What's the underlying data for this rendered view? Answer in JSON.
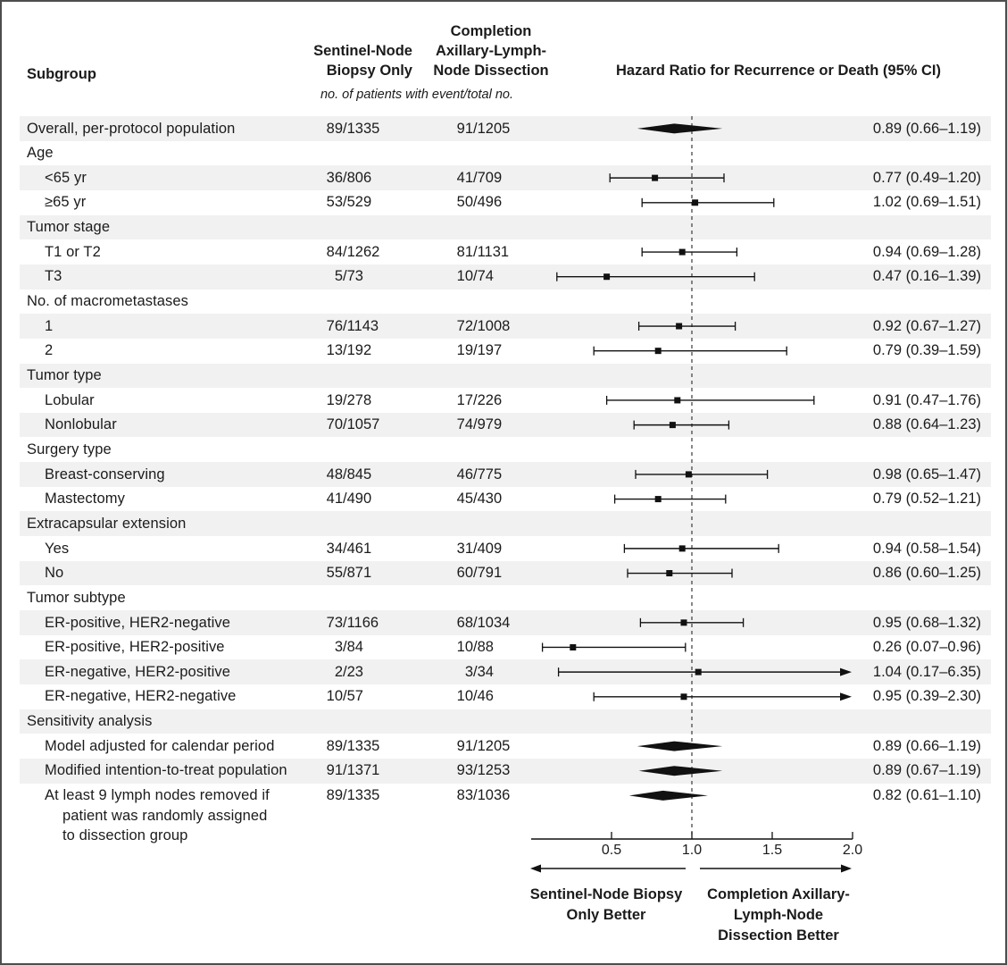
{
  "columns": {
    "subgroup": "Subgroup",
    "snb_lines": [
      "Sentinel-Node",
      "Biopsy Only"
    ],
    "alnd_lines": [
      "Completion",
      "Axillary-Lymph-",
      "Node Dissection"
    ],
    "events_note": "no. of patients with event/total no.",
    "hazard_header": "Hazard Ratio for Recurrence or Death (95% CI)"
  },
  "direction_labels": {
    "left_lines": [
      "Sentinel-Node Biopsy",
      "Only Better"
    ],
    "right_lines": [
      "Completion Axillary-",
      "Lymph-Node",
      "Dissection Better"
    ]
  },
  "colors": {
    "band": "#f1f1f1",
    "ink": "#1b1b1b",
    "marker": "#111111",
    "border": "#4d4d4d"
  },
  "chart_data": {
    "type": "scatter",
    "variant": "forest-plot",
    "title": "Hazard Ratio for Recurrence or Death (95% CI)",
    "x_axis": {
      "tick_labels": [
        "0.5",
        "1.0",
        "1.5",
        "2.0"
      ],
      "tick_values": [
        0.5,
        1.0,
        1.5,
        2.0
      ],
      "range": [
        0.0,
        2.0
      ],
      "reference_line": 1.0
    },
    "rows": [
      {
        "label": "Overall, per-protocol population",
        "indent": 0,
        "snb": "89/1335",
        "alnd": "91/1205",
        "hr": 0.89,
        "lo": 0.66,
        "hi": 1.19,
        "ci_text": "0.89 (0.66–1.19)",
        "marker": "diamond"
      },
      {
        "label": "Age",
        "indent": 0
      },
      {
        "label": "<65 yr",
        "indent": 1,
        "snb": "36/806",
        "alnd": "41/709",
        "hr": 0.77,
        "lo": 0.49,
        "hi": 1.2,
        "ci_text": "0.77 (0.49–1.20)",
        "marker": "square"
      },
      {
        "label": "≥65 yr",
        "indent": 1,
        "snb": "53/529",
        "alnd": "50/496",
        "hr": 1.02,
        "lo": 0.69,
        "hi": 1.51,
        "ci_text": "1.02 (0.69–1.51)",
        "marker": "square"
      },
      {
        "label": "Tumor stage",
        "indent": 0
      },
      {
        "label": "T1 or T2",
        "indent": 1,
        "snb": "84/1262",
        "alnd": "81/1131",
        "hr": 0.94,
        "lo": 0.69,
        "hi": 1.28,
        "ci_text": "0.94 (0.69–1.28)",
        "marker": "square"
      },
      {
        "label": "T3",
        "indent": 1,
        "snb": "5/73",
        "alnd": "10/74",
        "hr": 0.47,
        "lo": 0.16,
        "hi": 1.39,
        "ci_text": "0.47 (0.16–1.39)",
        "marker": "square"
      },
      {
        "label": "No. of macrometastases",
        "indent": 0
      },
      {
        "label": "1",
        "indent": 1,
        "snb": "76/1143",
        "alnd": "72/1008",
        "hr": 0.92,
        "lo": 0.67,
        "hi": 1.27,
        "ci_text": "0.92 (0.67–1.27)",
        "marker": "square"
      },
      {
        "label": "2",
        "indent": 1,
        "snb": "13/192",
        "alnd": "19/197",
        "hr": 0.79,
        "lo": 0.39,
        "hi": 1.59,
        "ci_text": "0.79 (0.39–1.59)",
        "marker": "square"
      },
      {
        "label": "Tumor type",
        "indent": 0
      },
      {
        "label": "Lobular",
        "indent": 1,
        "snb": "19/278",
        "alnd": "17/226",
        "hr": 0.91,
        "lo": 0.47,
        "hi": 1.76,
        "ci_text": "0.91 (0.47–1.76)",
        "marker": "square"
      },
      {
        "label": "Nonlobular",
        "indent": 1,
        "snb": "70/1057",
        "alnd": "74/979",
        "hr": 0.88,
        "lo": 0.64,
        "hi": 1.23,
        "ci_text": "0.88 (0.64–1.23)",
        "marker": "square"
      },
      {
        "label": "Surgery type",
        "indent": 0
      },
      {
        "label": "Breast-conserving",
        "indent": 1,
        "snb": "48/845",
        "alnd": "46/775",
        "hr": 0.98,
        "lo": 0.65,
        "hi": 1.47,
        "ci_text": "0.98 (0.65–1.47)",
        "marker": "square"
      },
      {
        "label": "Mastectomy",
        "indent": 1,
        "snb": "41/490",
        "alnd": "45/430",
        "hr": 0.79,
        "lo": 0.52,
        "hi": 1.21,
        "ci_text": "0.79 (0.52–1.21)",
        "marker": "square"
      },
      {
        "label": "Extracapsular extension",
        "indent": 0
      },
      {
        "label": "Yes",
        "indent": 1,
        "snb": "34/461",
        "alnd": "31/409",
        "hr": 0.94,
        "lo": 0.58,
        "hi": 1.54,
        "ci_text": "0.94 (0.58–1.54)",
        "marker": "square"
      },
      {
        "label": "No",
        "indent": 1,
        "snb": "55/871",
        "alnd": "60/791",
        "hr": 0.86,
        "lo": 0.6,
        "hi": 1.25,
        "ci_text": "0.86 (0.60–1.25)",
        "marker": "square"
      },
      {
        "label": "Tumor subtype",
        "indent": 0
      },
      {
        "label": "ER-positive, HER2-negative",
        "indent": 1,
        "snb": "73/1166",
        "alnd": "68/1034",
        "hr": 0.95,
        "lo": 0.68,
        "hi": 1.32,
        "ci_text": "0.95 (0.68–1.32)",
        "marker": "square"
      },
      {
        "label": "ER-positive, HER2-positive",
        "indent": 1,
        "snb": "3/84",
        "alnd": "10/88",
        "hr": 0.26,
        "lo": 0.07,
        "hi": 0.96,
        "ci_text": "0.26 (0.07–0.96)",
        "marker": "square"
      },
      {
        "label": "ER-negative, HER2-positive",
        "indent": 1,
        "snb": "2/23",
        "alnd": "3/34",
        "hr": 1.04,
        "lo": 0.17,
        "hi": 6.35,
        "ci_text": "1.04 (0.17–6.35)",
        "marker": "square",
        "arrow_right": true
      },
      {
        "label": "ER-negative, HER2-negative",
        "indent": 1,
        "snb": "10/57",
        "alnd": "10/46",
        "hr": 0.95,
        "lo": 0.39,
        "hi": 2.3,
        "ci_text": "0.95 (0.39–2.30)",
        "marker": "square",
        "arrow_right": true
      },
      {
        "label": "Sensitivity analysis",
        "indent": 0
      },
      {
        "label": "Model adjusted for calendar period",
        "indent": 1,
        "snb": "89/1335",
        "alnd": "91/1205",
        "hr": 0.89,
        "lo": 0.66,
        "hi": 1.19,
        "ci_text": "0.89 (0.66–1.19)",
        "marker": "diamond"
      },
      {
        "label": "Modified intention-to-treat population",
        "indent": 1,
        "snb": "91/1371",
        "alnd": "93/1253",
        "hr": 0.89,
        "lo": 0.67,
        "hi": 1.19,
        "ci_text": "0.89 (0.67–1.19)",
        "marker": "diamond"
      },
      {
        "label": [
          "At least 9 lymph nodes removed if",
          "patient was randomly assigned",
          "to dissection group"
        ],
        "indent": 1,
        "snb": "89/1335",
        "alnd": "83/1036",
        "hr": 0.82,
        "lo": 0.61,
        "hi": 1.1,
        "ci_text": "0.82 (0.61–1.10)",
        "marker": "diamond"
      }
    ]
  }
}
